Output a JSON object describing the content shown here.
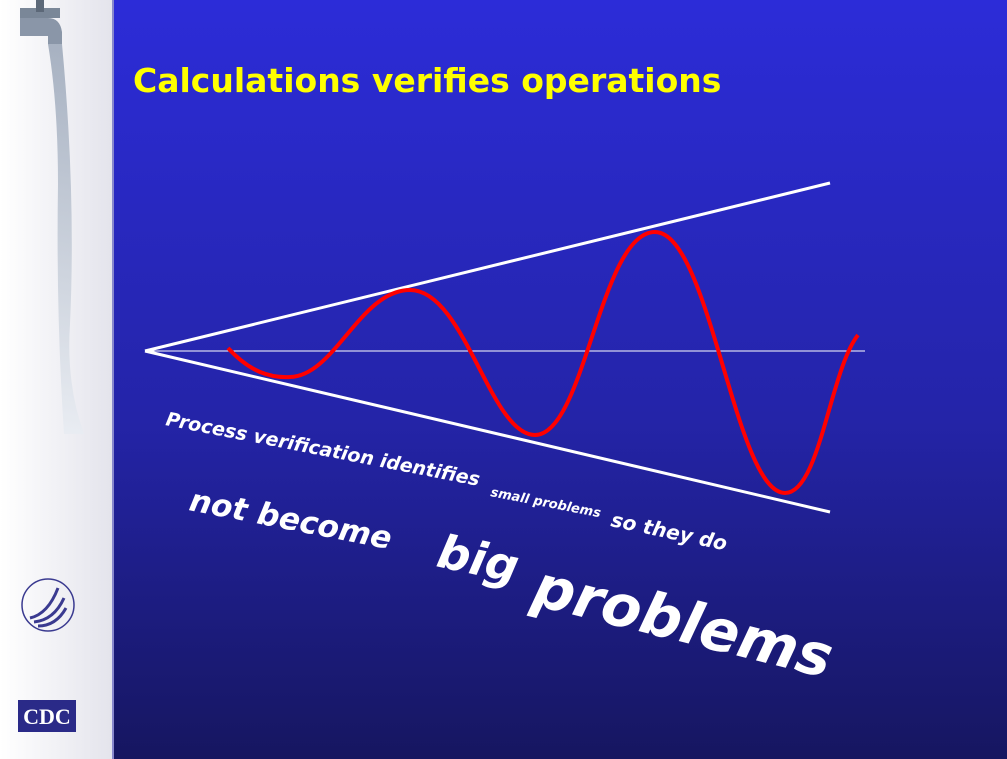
{
  "slide": {
    "title": "Calculations verifies operations",
    "caption": [
      "Process verification identifies",
      "small problems",
      "so they do",
      "not become",
      "big",
      "problems"
    ],
    "logo": "CDC"
  }
}
